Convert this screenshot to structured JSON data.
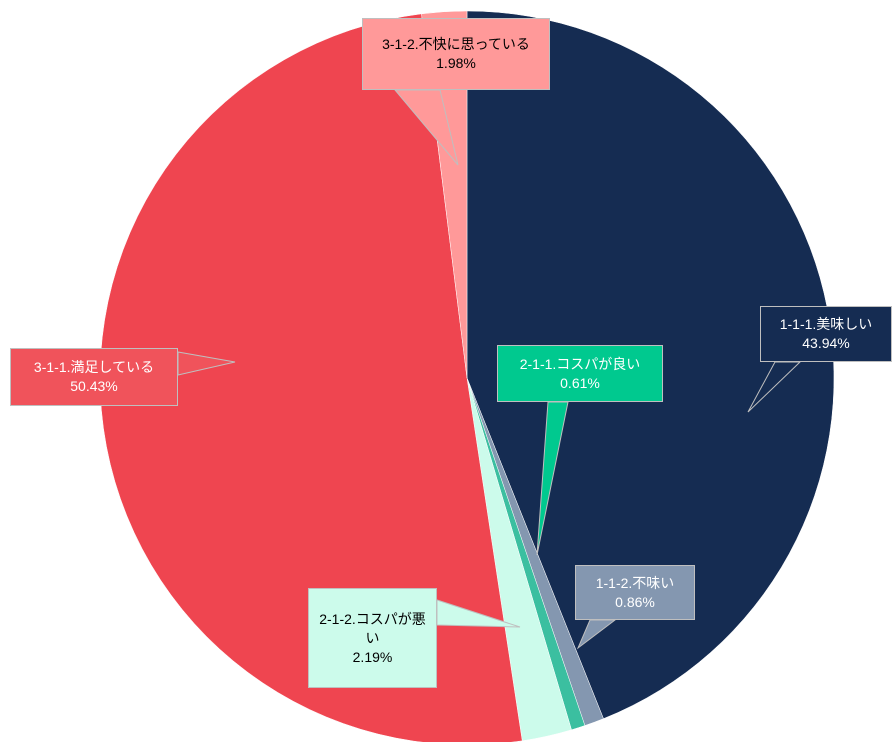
{
  "chart_data": {
    "type": "pie",
    "categories": [
      "1-1-1.美味しい",
      "1-1-2.不味い",
      "2-1-1.コスパが良い",
      "2-1-2.コスパが悪い",
      "3-1-1.満足している",
      "3-1-2.不快に思っている"
    ],
    "values": [
      43.94,
      0.86,
      0.61,
      2.19,
      50.43,
      1.98
    ],
    "value_labels": [
      "43.94%",
      "0.86%",
      "0.61%",
      "2.19%",
      "50.43%",
      "1.98%"
    ],
    "colors": [
      "#152c52",
      "#8497b0",
      "#3bbfa0",
      "#ccfbeb",
      "#ef4550",
      "#ff9999"
    ]
  }
}
